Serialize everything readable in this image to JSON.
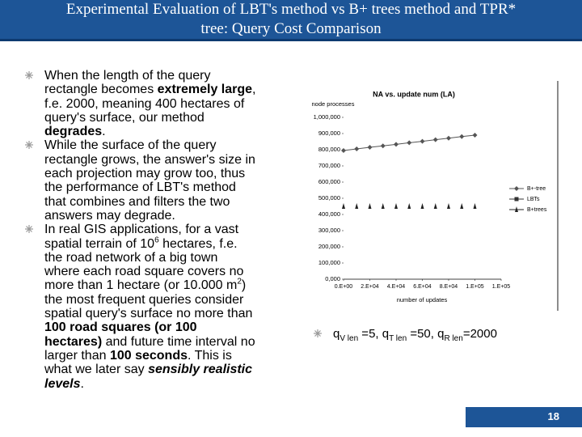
{
  "slide": {
    "title": "Experimental Evaluation of LBT's method vs B+ trees method and TPR* tree: Query Cost Comparison",
    "bullets": [
      {
        "runs": [
          {
            "text": "When the length of the query rectangle becomes "
          },
          {
            "text": "extremely large",
            "style": "b"
          },
          {
            "text": ", f.e. 2000, meaning 400 hectares of query's surface, our method "
          },
          {
            "text": "degrades",
            "style": "b"
          },
          {
            "text": "."
          }
        ]
      },
      {
        "runs": [
          {
            "text": "While the surface of the query rectangle grows, the answer's size in each projection may grow too, thus the performance of LBT's method that combines and filters the two answers may degrade."
          }
        ]
      },
      {
        "runs": [
          {
            "text": "In real GIS applications, for a vast spatial terrain of 10"
          },
          {
            "text": "6",
            "style": "sup"
          },
          {
            "text": " hectares, f.e. the road network of a big town where each road square covers no more than 1 hectare (or 10.000 m"
          },
          {
            "text": "2",
            "style": "sup"
          },
          {
            "text": ") the most frequent queries consider spatial query's surface no more than "
          },
          {
            "text": "100 road squares (or 100 hectares)",
            "style": "b"
          },
          {
            "text": " and future time interval no larger than "
          },
          {
            "text": "100 seconds",
            "style": "b"
          },
          {
            "text": ". This is what we later say "
          },
          {
            "text": "sensibly realistic levels",
            "style": "bi"
          },
          {
            "text": "."
          }
        ]
      }
    ],
    "note": {
      "runs": [
        {
          "text": "q"
        },
        {
          "text": "V len",
          "style": "sub"
        },
        {
          "text": " =5, q"
        },
        {
          "text": "T len",
          "style": "sub"
        },
        {
          "text": " =50, q"
        },
        {
          "text": "R len",
          "style": "sub"
        },
        {
          "text": "=2000"
        }
      ]
    },
    "page_number": "18"
  },
  "chart_data": {
    "type": "line",
    "title": "NA vs. update num (LA)",
    "y_label": "node processes",
    "x_label": "number of updates",
    "x": [
      0,
      10000,
      20000,
      30000,
      40000,
      50000,
      60000,
      70000,
      80000,
      90000,
      100000
    ],
    "series": [
      {
        "name": "B+-tree",
        "color": "#555555",
        "marker": "diamond",
        "line": true,
        "values": [
          795000,
          805000,
          815000,
          824000,
          833000,
          843000,
          852000,
          862000,
          871000,
          881000,
          890000
        ]
      },
      {
        "name": "LBTs",
        "color": "#333333",
        "marker": "square",
        "line": true,
        "values": [
          null,
          null,
          null,
          null,
          null,
          null,
          null,
          null,
          null,
          null,
          null
        ]
      },
      {
        "name": "B+trees",
        "color": "#222222",
        "marker": "triangle",
        "line": false,
        "values": [
          450000,
          450000,
          450000,
          450000,
          450000,
          450000,
          450000,
          450000,
          450000,
          450000,
          450000
        ]
      }
    ],
    "xlim": [
      0,
      120000
    ],
    "xticks": [
      {
        "value": 0,
        "label": "0.E+00"
      },
      {
        "value": 20000,
        "label": "2.E+04"
      },
      {
        "value": 40000,
        "label": "4.E+04"
      },
      {
        "value": 60000,
        "label": "6.E+04"
      },
      {
        "value": 80000,
        "label": "8.E+04"
      },
      {
        "value": 100000,
        "label": "1.E+05"
      },
      {
        "value": 120000,
        "label": "1.E+05"
      }
    ],
    "ylim": [
      0,
      1000000
    ],
    "yticks": [
      {
        "value": 0,
        "label": "0,000"
      },
      {
        "value": 100000,
        "label": "100,000"
      },
      {
        "value": 200000,
        "label": "200,000"
      },
      {
        "value": 300000,
        "label": "300,000"
      },
      {
        "value": 400000,
        "label": "400,000"
      },
      {
        "value": 500000,
        "label": "500,000"
      },
      {
        "value": 600000,
        "label": "600,000"
      },
      {
        "value": 700000,
        "label": "700,000"
      },
      {
        "value": 800000,
        "label": "800,000"
      },
      {
        "value": 900000,
        "label": "900,000"
      },
      {
        "value": 1000000,
        "label": "1,000,000"
      }
    ],
    "legend": "right"
  }
}
